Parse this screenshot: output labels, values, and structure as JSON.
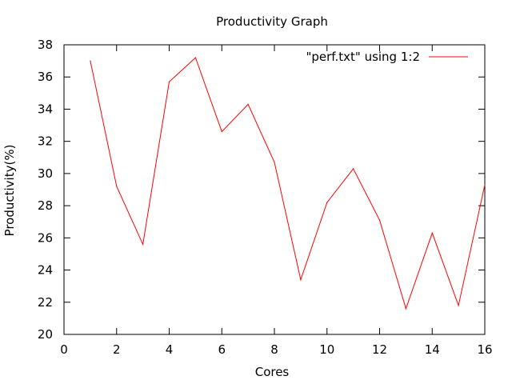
{
  "chart_data": {
    "type": "line",
    "title": "Productivity Graph",
    "xlabel": "Cores",
    "ylabel": "Productivity(%)",
    "xlim": [
      0,
      16
    ],
    "ylim": [
      20,
      38
    ],
    "x_ticks": [
      0,
      2,
      4,
      6,
      8,
      10,
      12,
      14,
      16
    ],
    "y_ticks": [
      20,
      22,
      24,
      26,
      28,
      30,
      32,
      34,
      36,
      38
    ],
    "grid": false,
    "legend_position": "top-right",
    "series": [
      {
        "name": "\"perf.txt\" using 1:2",
        "color": "#ff0000",
        "x": [
          1,
          2,
          3,
          4,
          5,
          6,
          7,
          8,
          9,
          10,
          11,
          12,
          13,
          14,
          15,
          16
        ],
        "y": [
          37.0,
          29.2,
          25.6,
          35.7,
          37.2,
          32.6,
          34.3,
          30.7,
          23.4,
          28.2,
          30.3,
          27.1,
          21.6,
          26.3,
          21.8,
          29.3
        ]
      }
    ]
  }
}
